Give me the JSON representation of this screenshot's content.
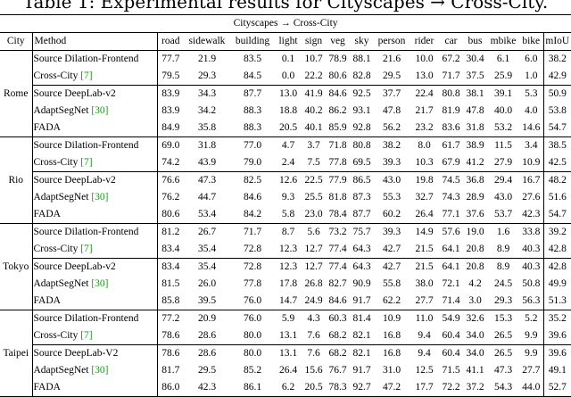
{
  "caption": "Table 1: Experimental results for Cityscapes → Cross-City.",
  "super_header": "Cityscapes → Cross-City",
  "columns": [
    "City",
    "Method",
    "road",
    "sidewalk",
    "building",
    "light",
    "sign",
    "veg",
    "sky",
    "person",
    "rider",
    "car",
    "bus",
    "mbike",
    "bike",
    "mIoU"
  ],
  "groups": [
    {
      "city": "Rome",
      "rows": [
        {
          "method": "Source Dilation-Frontend",
          "ref": "",
          "values": [
            "77.7",
            "21.9",
            "83.5",
            "0.1",
            "10.7",
            "78.9",
            "88.1",
            "21.6",
            "10.0",
            "67.2",
            "30.4",
            "6.1",
            "6.0",
            "38.2"
          ],
          "bold": []
        },
        {
          "method": "Cross-City ",
          "ref": "[7]",
          "values": [
            "79.5",
            "29.3",
            "84.5",
            "0.0",
            "22.2",
            "80.6",
            "82.8",
            "29.5",
            "13.0",
            "71.7",
            "37.5",
            "25.9",
            "1.0",
            "42.9"
          ],
          "bold": []
        },
        {
          "method": "Source DeepLab-v2",
          "ref": "",
          "values": [
            "83.9",
            "34.3",
            "87.7",
            "13.0",
            "41.9",
            "84.6",
            "92.5",
            "37.7",
            "22.4",
            "80.8",
            "38.1",
            "39.1",
            "5.3",
            "50.9"
          ],
          "bold": []
        },
        {
          "method": "AdaptSegNet ",
          "ref": "[30]",
          "values": [
            "83.9",
            "34.2",
            "88.3",
            "18.8",
            "40.2",
            "86.2",
            "93.1",
            "47.8",
            "21.7",
            "81.9",
            "47.8",
            "40.0",
            "4.0",
            "53.8"
          ],
          "bold": [
            2,
            4,
            5,
            6,
            11
          ]
        },
        {
          "method": "FADA",
          "ref": "",
          "values": [
            "84.9",
            "35.8",
            "88.3",
            "20.5",
            "40.1",
            "85.9",
            "92.8",
            "56.2",
            "23.2",
            "83.6",
            "31.8",
            "53.2",
            "14.6",
            "54.7"
          ],
          "bold": [
            0,
            1,
            2,
            3,
            7,
            8,
            9,
            11,
            12,
            13
          ]
        }
      ]
    },
    {
      "city": "Rio",
      "rows": [
        {
          "method": "Source Dilation-Frontend",
          "ref": "",
          "values": [
            "69.0",
            "31.8",
            "77.0",
            "4.7",
            "3.7",
            "71.8",
            "80.8",
            "38.2",
            "8.0",
            "61.7",
            "38.9",
            "11.5",
            "3.4",
            "38.5"
          ],
          "bold": []
        },
        {
          "method": "Cross-City ",
          "ref": "[7]",
          "values": [
            "74.2",
            "43.9",
            "79.0",
            "2.4",
            "7.5",
            "77.8",
            "69.5",
            "39.3",
            "10.3",
            "67.9",
            "41.2",
            "27.9",
            "10.9",
            "42.5"
          ],
          "bold": [
            10
          ]
        },
        {
          "method": "Source DeepLab-v2",
          "ref": "",
          "values": [
            "76.6",
            "47.3",
            "82.5",
            "12.6",
            "22.5",
            "77.9",
            "86.5",
            "43.0",
            "19.8",
            "74.5",
            "36.8",
            "29.4",
            "16.7",
            "48.2"
          ],
          "bold": [
            3
          ]
        },
        {
          "method": "AdaptSegNet ",
          "ref": "[30]",
          "values": [
            "76.2",
            "44.7",
            "84.6",
            "9.3",
            "25.5",
            "81.8",
            "87.3",
            "55.3",
            "32.7",
            "74.3",
            "28.9",
            "43.0",
            "27.6",
            "51.6"
          ],
          "bold": [
            2,
            4,
            5,
            9
          ]
        },
        {
          "method": "FADA",
          "ref": "",
          "values": [
            "80.6",
            "53.4",
            "84.2",
            "5.8",
            "23.0",
            "78.4",
            "87.7",
            "60.2",
            "26.4",
            "77.1",
            "37.6",
            "53.7",
            "42.3",
            "54.7"
          ],
          "bold": [
            0,
            1,
            6,
            7,
            11,
            12,
            13
          ]
        }
      ]
    },
    {
      "city": "Tokyo",
      "rows": [
        {
          "method": "Source Dilation-Frontend",
          "ref": "",
          "values": [
            "81.2",
            "26.7",
            "71.7",
            "8.7",
            "5.6",
            "73.2",
            "75.7",
            "39.3",
            "14.9",
            "57.6",
            "19.0",
            "1.6",
            "33.8",
            "39.2"
          ],
          "bold": []
        },
        {
          "method": "Cross-City ",
          "ref": "[7]",
          "values": [
            "83.4",
            "35.4",
            "72.8",
            "12.3",
            "12.7",
            "77.4",
            "64.3",
            "42.7",
            "21.5",
            "64.1",
            "20.8",
            "8.9",
            "40.3",
            "42.8"
          ],
          "bold": [
            10
          ]
        },
        {
          "method": "Source DeepLab-v2",
          "ref": "",
          "values": [
            "83.4",
            "35.4",
            "72.8",
            "12.3",
            "12.7",
            "77.4",
            "64.3",
            "42.7",
            "21.5",
            "64.1",
            "20.8",
            "8.9",
            "40.3",
            "42.8"
          ],
          "bold": []
        },
        {
          "method": "AdaptSegNet ",
          "ref": "[30]",
          "values": [
            "81.5",
            "26.0",
            "77.8",
            "17.8",
            "26.8",
            "82.7",
            "90.9",
            "55.8",
            "38.0",
            "72.1",
            "4.2",
            "24.5",
            "50.8",
            "49.9"
          ],
          "bold": [
            3,
            4,
            8,
            9
          ]
        },
        {
          "method": "FADA",
          "ref": "",
          "values": [
            "85.8",
            "39.5",
            "76.0",
            "14.7",
            "24.9",
            "84.6",
            "91.7",
            "62.2",
            "27.7",
            "71.4",
            "3.0",
            "29.3",
            "56.3",
            "51.3"
          ],
          "bold": [
            0,
            1,
            2,
            5,
            6,
            7,
            11,
            12,
            13
          ]
        }
      ]
    },
    {
      "city": "Taipei",
      "rows": [
        {
          "method": "Source Dilation-Frontend",
          "ref": "",
          "values": [
            "77.2",
            "20.9",
            "76.0",
            "5.9",
            "4.3",
            "60.3",
            "81.4",
            "10.9",
            "11.0",
            "54.9",
            "32.6",
            "15.3",
            "5.2",
            "35.2"
          ],
          "bold": []
        },
        {
          "method": "Cross-City ",
          "ref": "[7]",
          "values": [
            "78.6",
            "28.6",
            "80.0",
            "13.1",
            "7.6",
            "68.2",
            "82.1",
            "16.8",
            "9.4",
            "60.4",
            "34.0",
            "26.5",
            "9.9",
            "39.6"
          ],
          "bold": []
        },
        {
          "method": "Source DeepLab-V2",
          "ref": "",
          "values": [
            "78.6",
            "28.6",
            "80.0",
            "13.1",
            "7.6",
            "68.2",
            "82.1",
            "16.8",
            "9.4",
            "60.4",
            "34.0",
            "26.5",
            "9.9",
            "39.6"
          ],
          "bold": []
        },
        {
          "method": "AdaptSegNet ",
          "ref": "[30]",
          "values": [
            "81.7",
            "29.5",
            "85.2",
            "26.4",
            "15.6",
            "76.7",
            "91.7",
            "31.0",
            "12.5",
            "71.5",
            "41.1",
            "47.3",
            "27.7",
            "49.1"
          ],
          "bold": [
            3,
            10
          ]
        },
        {
          "method": "FADA",
          "ref": "",
          "values": [
            "86.0",
            "42.3",
            "86.1",
            "6.2",
            "20.5",
            "78.3",
            "92.7",
            "47.2",
            "17.7",
            "72.2",
            "37.2",
            "54.3",
            "44.0",
            "52.7"
          ],
          "bold": [
            0,
            1,
            2,
            4,
            5,
            6,
            7,
            8,
            9,
            11,
            12,
            13
          ]
        }
      ]
    }
  ]
}
